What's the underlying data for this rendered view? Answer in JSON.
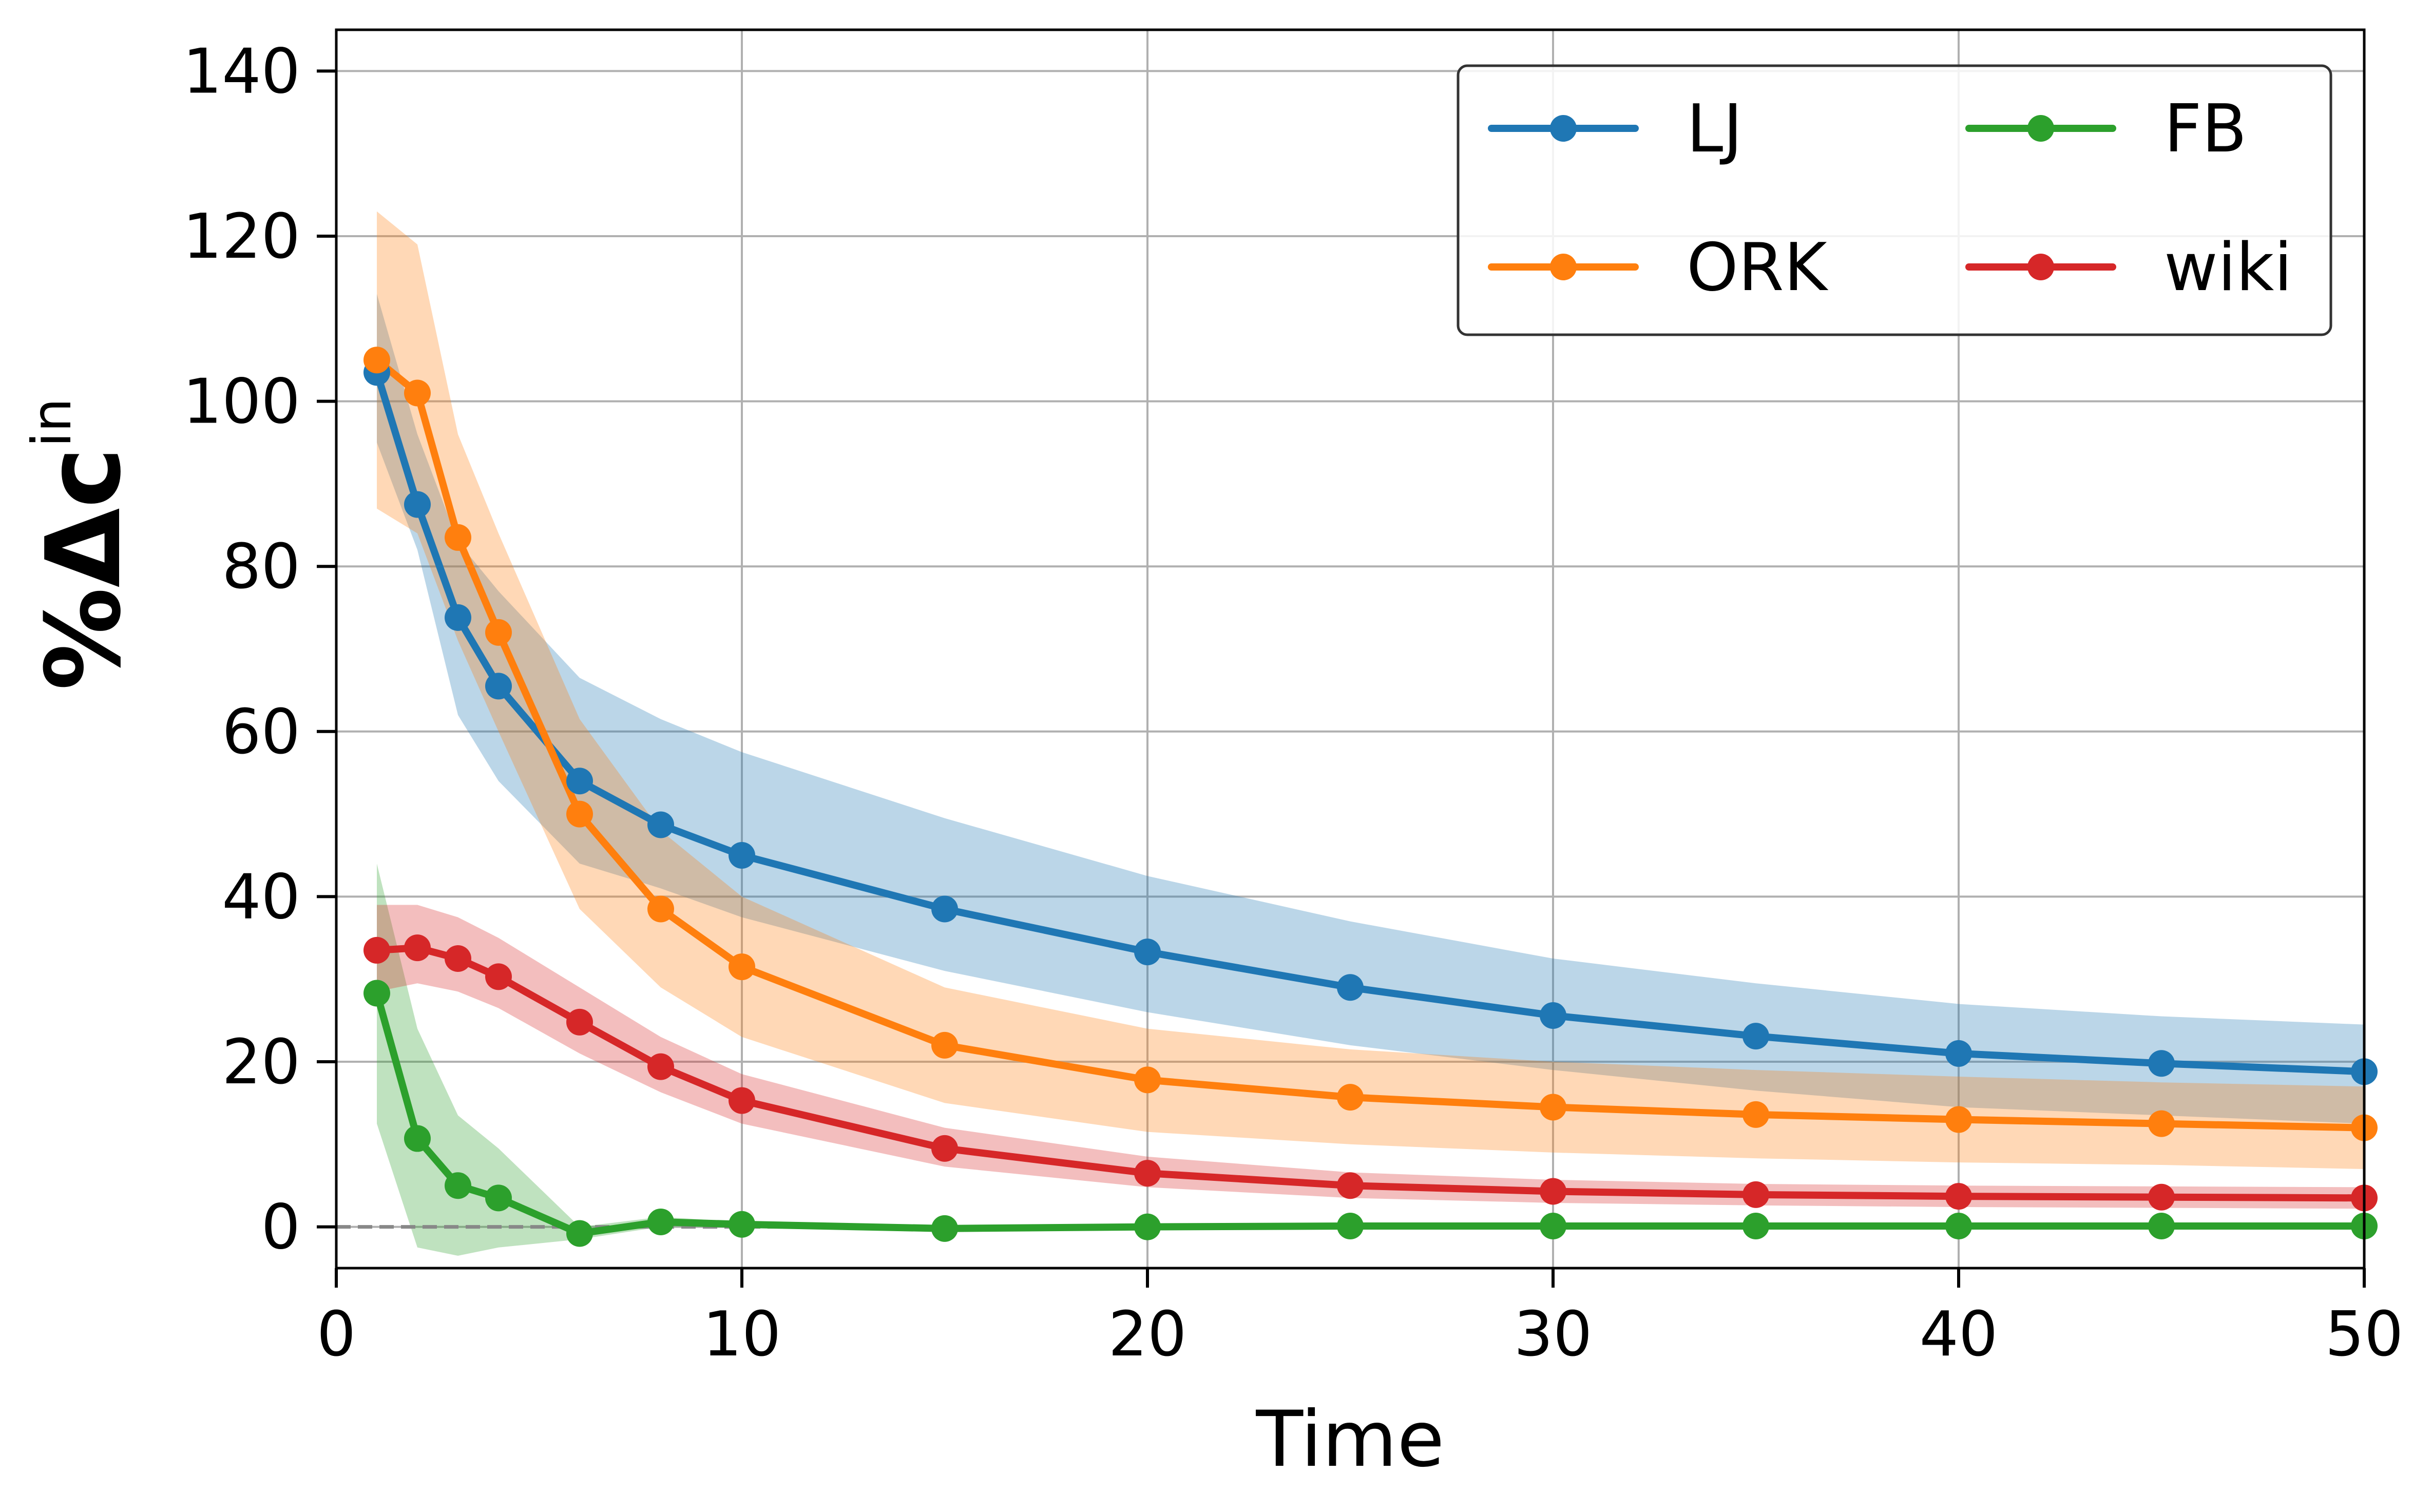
{
  "chart_data": {
    "type": "line",
    "xlabel": "Time",
    "ylabel": {
      "prefix": "%Δc",
      "superscript": "in"
    },
    "xlim": [
      0,
      50
    ],
    "ylim": [
      -5,
      145
    ],
    "xticks": [
      0,
      10,
      20,
      30,
      40,
      50
    ],
    "yticks": [
      0,
      20,
      40,
      60,
      80,
      100,
      120,
      140
    ],
    "xtick_labels": [
      "0",
      "10",
      "20",
      "30",
      "40",
      "50"
    ],
    "ytick_labels": [
      "0",
      "20",
      "40",
      "60",
      "80",
      "100",
      "120",
      "140"
    ],
    "grid": true,
    "baseline": 0,
    "legend_position": "top-right",
    "legend_columns": 2,
    "series": [
      {
        "name": "LJ",
        "color": "#1f77b4",
        "x": [
          1,
          2,
          3,
          4,
          6,
          8,
          10,
          15,
          20,
          25,
          30,
          35,
          40,
          45,
          50
        ],
        "values": [
          103.5,
          87.5,
          73.8,
          65.5,
          54,
          48.7,
          45,
          38.5,
          33.3,
          29,
          25.6,
          23.1,
          21,
          19.8,
          18.8
        ],
        "lower": [
          95,
          82,
          62,
          54,
          44,
          41,
          37.5,
          31,
          26,
          22,
          19,
          16.5,
          14.5,
          13.5,
          12.5
        ],
        "upper": [
          113,
          96,
          83,
          77,
          66.5,
          61.5,
          57.5,
          49.5,
          42.5,
          37,
          32.5,
          29.5,
          27,
          25.5,
          24.5
        ]
      },
      {
        "name": "ORK",
        "color": "#ff7f0e",
        "x": [
          1,
          2,
          3,
          4,
          6,
          8,
          10,
          15,
          20,
          25,
          30,
          35,
          40,
          45,
          50
        ],
        "values": [
          105,
          101,
          83.5,
          72,
          50,
          38.5,
          31.5,
          22,
          17.8,
          15.7,
          14.5,
          13.6,
          13,
          12.5,
          12
        ],
        "lower": [
          87,
          84,
          71,
          60,
          38.5,
          29,
          23,
          15,
          11.5,
          10,
          9,
          8.3,
          7.8,
          7.5,
          7
        ],
        "upper": [
          123,
          119,
          96,
          84,
          61.5,
          48,
          40,
          29,
          24,
          21.5,
          20,
          19,
          18.2,
          17.5,
          17
        ]
      },
      {
        "name": "FB",
        "color": "#2ca02c",
        "x": [
          1,
          2,
          3,
          4,
          6,
          8,
          10,
          15,
          20,
          25,
          30,
          35,
          40,
          45,
          50
        ],
        "values": [
          28.3,
          10.7,
          5,
          3.5,
          -0.8,
          0.6,
          0.3,
          -0.2,
          0,
          0.1,
          0.1,
          0.1,
          0.1,
          0.1,
          0.1
        ],
        "lower": [
          12.5,
          -2.5,
          -3.5,
          -2.5,
          -1.5,
          0,
          0,
          -0.4,
          -0.2,
          -0.1,
          -0.1,
          -0.1,
          -0.1,
          -0.1,
          -0.1
        ],
        "upper": [
          44,
          24,
          13.5,
          9.5,
          0,
          1.2,
          0.6,
          0,
          0.2,
          0.3,
          0.3,
          0.3,
          0.3,
          0.3,
          0.3
        ]
      },
      {
        "name": "wiki",
        "color": "#d62728",
        "x": [
          1,
          2,
          3,
          4,
          6,
          8,
          10,
          15,
          20,
          25,
          30,
          35,
          40,
          45,
          50
        ],
        "values": [
          33.5,
          33.8,
          32.5,
          30.3,
          24.8,
          19.4,
          15.3,
          9.5,
          6.5,
          5,
          4.3,
          3.9,
          3.7,
          3.6,
          3.5
        ],
        "lower": [
          28.5,
          29.5,
          28.5,
          26.5,
          21,
          16.3,
          12.5,
          7.3,
          4.8,
          3.5,
          2.9,
          2.6,
          2.4,
          2.3,
          2.2
        ],
        "upper": [
          39,
          39,
          37.5,
          35,
          29,
          23,
          18.5,
          12,
          8.5,
          6.6,
          5.7,
          5.2,
          5,
          4.9,
          4.8
        ]
      }
    ]
  }
}
